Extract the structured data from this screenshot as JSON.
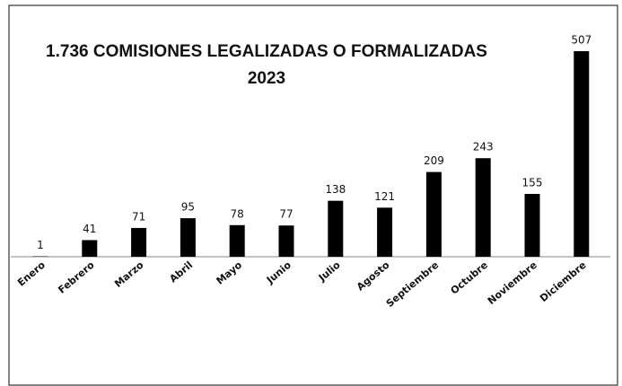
{
  "chart_data": {
    "type": "bar",
    "title": [
      "1.736 COMISIONES LEGALIZADAS O FORMALIZADAS",
      "2023"
    ],
    "categories": [
      "Enero",
      "Febrero",
      "Marzo",
      "Abril",
      "Mayo",
      "Junio",
      "Julio",
      "Agosto",
      "Septiembre",
      "Octubre",
      "Noviembre",
      "Diciembre"
    ],
    "values": [
      1,
      41,
      71,
      95,
      78,
      77,
      138,
      121,
      209,
      243,
      155,
      507
    ],
    "color": "#000000"
  }
}
